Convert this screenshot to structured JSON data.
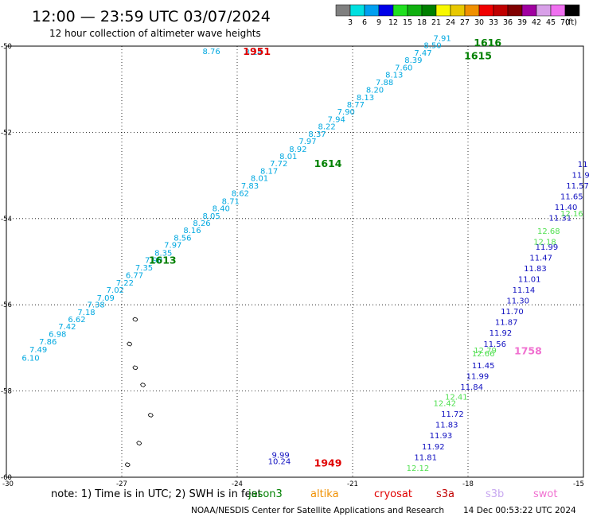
{
  "header": {
    "title": "12:00 — 23:59 UTC 03/07/2024",
    "subtitle": "12 hour collection of altimeter wave heights"
  },
  "colorbar": {
    "unit": "(ft)",
    "bins": [
      {
        "label": "3",
        "color": "#808080"
      },
      {
        "label": "6",
        "color": "#00e0e0"
      },
      {
        "label": "9",
        "color": "#00a0f0"
      },
      {
        "label": "12",
        "color": "#0000e8"
      },
      {
        "label": "15",
        "color": "#20e020"
      },
      {
        "label": "18",
        "color": "#10b010"
      },
      {
        "label": "21",
        "color": "#008000"
      },
      {
        "label": "24",
        "color": "#f8f800"
      },
      {
        "label": "27",
        "color": "#e8c800"
      },
      {
        "label": "30",
        "color": "#f09000"
      },
      {
        "label": "33",
        "color": "#f00000"
      },
      {
        "label": "36",
        "color": "#c00000"
      },
      {
        "label": "39",
        "color": "#800000"
      },
      {
        "label": "42",
        "color": "#a000a0"
      },
      {
        "label": "45",
        "color": "#d8a0e8"
      },
      {
        "label": "70",
        "color": "#f070f0"
      },
      {
        "label": "",
        "color": "#000000"
      }
    ]
  },
  "axes": {
    "lat_labels": [
      "-50",
      "-52",
      "-54",
      "-56",
      "-58",
      "-60"
    ],
    "lon_labels": [
      "-30",
      "-27",
      "-24",
      "-21",
      "-18",
      "-15"
    ]
  },
  "legend": {
    "note": "note: 1) Time is in UTC; 2) SWH is in feet",
    "satellites": [
      {
        "name": "jason3",
        "color": "#008000"
      },
      {
        "name": "altika",
        "color": "#f09000"
      },
      {
        "name": "cryosat",
        "color": "#e00000"
      },
      {
        "name": "s3a",
        "color": "#c00000"
      },
      {
        "name": "s3b",
        "color": "#c8a8f0"
      },
      {
        "name": "swot",
        "color": "#f070d0"
      }
    ]
  },
  "footer": {
    "credit": "NOAA/NESDIS Center for Satellite Applications and Research",
    "timestamp": "14 Dec 00:53:22 UTC 2024"
  },
  "tracks": [
    {
      "name": "cyan-pass",
      "color": "#00a8e0",
      "labels": [
        {
          "t": "8.14",
          "lon": -23.8,
          "lat": -50.2
        },
        {
          "t": "8.76",
          "lon": -24.9,
          "lat": -50.18
        },
        {
          "t": "6.10",
          "lon": -29.6,
          "lat": -57.3
        },
        {
          "t": "7.49",
          "lon": -29.4,
          "lat": -57.1
        },
        {
          "t": "7.86",
          "lon": -29.15,
          "lat": -56.92
        },
        {
          "t": "6.98",
          "lon": -28.9,
          "lat": -56.74
        },
        {
          "t": "7.42",
          "lon": -28.65,
          "lat": -56.57
        },
        {
          "t": "6.62",
          "lon": -28.4,
          "lat": -56.4
        },
        {
          "t": "7.18",
          "lon": -28.15,
          "lat": -56.24
        },
        {
          "t": "7.38",
          "lon": -27.9,
          "lat": -56.06
        },
        {
          "t": "7.09",
          "lon": -27.65,
          "lat": -55.9
        },
        {
          "t": "7.02",
          "lon": -27.4,
          "lat": -55.72
        },
        {
          "t": "7.22",
          "lon": -27.15,
          "lat": -55.55
        },
        {
          "t": "6.77",
          "lon": -26.9,
          "lat": -55.38
        },
        {
          "t": "7.35",
          "lon": -26.65,
          "lat": -55.2
        },
        {
          "t": "7.90",
          "lon": -26.4,
          "lat": -55.03
        },
        {
          "t": "8.35",
          "lon": -26.15,
          "lat": -54.86
        },
        {
          "t": "7.97",
          "lon": -25.9,
          "lat": -54.68
        },
        {
          "t": "8.56",
          "lon": -25.65,
          "lat": -54.51
        },
        {
          "t": "8.16",
          "lon": -25.4,
          "lat": -54.34
        },
        {
          "t": "8.26",
          "lon": -25.15,
          "lat": -54.17
        },
        {
          "t": "8.05",
          "lon": -24.9,
          "lat": -54.0
        },
        {
          "t": "8.40",
          "lon": -24.65,
          "lat": -53.83
        },
        {
          "t": "8.71",
          "lon": -24.4,
          "lat": -53.66
        },
        {
          "t": "8.62",
          "lon": -24.15,
          "lat": -53.48
        },
        {
          "t": "7.83",
          "lon": -23.9,
          "lat": -53.3
        },
        {
          "t": "8.01",
          "lon": -23.65,
          "lat": -53.13
        },
        {
          "t": "8.17",
          "lon": -23.4,
          "lat": -52.96
        },
        {
          "t": "7.72",
          "lon": -23.15,
          "lat": -52.79
        },
        {
          "t": "8.01",
          "lon": -22.9,
          "lat": -52.62
        },
        {
          "t": "8.92",
          "lon": -22.65,
          "lat": -52.45
        },
        {
          "t": "7.97",
          "lon": -22.4,
          "lat": -52.27
        },
        {
          "t": "8.37",
          "lon": -22.15,
          "lat": -52.1
        },
        {
          "t": "8.22",
          "lon": -21.9,
          "lat": -51.93
        },
        {
          "t": "7.94",
          "lon": -21.65,
          "lat": -51.76
        },
        {
          "t": "7.90",
          "lon": -21.4,
          "lat": -51.59
        },
        {
          "t": "8.77",
          "lon": -21.15,
          "lat": -51.42
        },
        {
          "t": "8.13",
          "lon": -20.9,
          "lat": -51.25
        },
        {
          "t": "8.20",
          "lon": -20.65,
          "lat": -51.08
        },
        {
          "t": "7.88",
          "lon": -20.4,
          "lat": -50.9
        },
        {
          "t": "8.13",
          "lon": -20.15,
          "lat": -50.73
        },
        {
          "t": "7.60",
          "lon": -19.9,
          "lat": -50.56
        },
        {
          "t": "8.39",
          "lon": -19.65,
          "lat": -50.39
        },
        {
          "t": "7.47",
          "lon": -19.4,
          "lat": -50.22
        },
        {
          "t": "8.50",
          "lon": -19.15,
          "lat": -50.05
        },
        {
          "t": "7.91",
          "lon": -18.9,
          "lat": -49.88
        }
      ]
    },
    {
      "name": "blue-pass",
      "color": "#1010c0",
      "labels": [
        {
          "t": "11.81",
          "lon": -19.4,
          "lat": -59.6
        },
        {
          "t": "11.92",
          "lon": -19.2,
          "lat": -59.35
        },
        {
          "t": "11.93",
          "lon": -19.0,
          "lat": -59.1
        },
        {
          "t": "11.83",
          "lon": -18.85,
          "lat": -58.85
        },
        {
          "t": "11.72",
          "lon": -18.7,
          "lat": -58.6
        },
        {
          "t": "11.84",
          "lon": -18.2,
          "lat": -57.97
        },
        {
          "t": "11.99",
          "lon": -18.05,
          "lat": -57.72
        },
        {
          "t": "11.45",
          "lon": -17.9,
          "lat": -57.47
        },
        {
          "t": "11.56",
          "lon": -17.6,
          "lat": -56.97
        },
        {
          "t": "11.92",
          "lon": -17.45,
          "lat": -56.72
        },
        {
          "t": "11.87",
          "lon": -17.3,
          "lat": -56.47
        },
        {
          "t": "11.70",
          "lon": -17.15,
          "lat": -56.22
        },
        {
          "t": "11.30",
          "lon": -17.0,
          "lat": -55.97
        },
        {
          "t": "11.14",
          "lon": -16.85,
          "lat": -55.72
        },
        {
          "t": "11.01",
          "lon": -16.7,
          "lat": -55.47
        },
        {
          "t": "11.83",
          "lon": -16.55,
          "lat": -55.22
        },
        {
          "t": "11.47",
          "lon": -16.4,
          "lat": -54.97
        },
        {
          "t": "11.99",
          "lon": -16.25,
          "lat": -54.72
        },
        {
          "t": "11.31",
          "lon": -15.9,
          "lat": -54.05
        },
        {
          "t": "11.40",
          "lon": -15.75,
          "lat": -53.8
        },
        {
          "t": "11.65",
          "lon": -15.6,
          "lat": -53.55
        },
        {
          "t": "11.57",
          "lon": -15.45,
          "lat": -53.3
        },
        {
          "t": "11.9",
          "lon": -15.3,
          "lat": -53.05
        },
        {
          "t": "11",
          "lon": -15.15,
          "lat": -52.8
        }
      ]
    },
    {
      "name": "green-pass",
      "color": "#50e050",
      "labels": [
        {
          "t": "12.12",
          "lon": -19.6,
          "lat": -59.85
        },
        {
          "t": "12.42",
          "lon": -18.9,
          "lat": -58.35
        },
        {
          "t": "12.41",
          "lon": -18.6,
          "lat": -58.2
        },
        {
          "t": "12.66",
          "lon": -17.9,
          "lat": -57.2
        },
        {
          "t": "12.79",
          "lon": -17.85,
          "lat": -57.12
        },
        {
          "t": "12.18",
          "lon": -16.3,
          "lat": -54.6
        },
        {
          "t": "12.68",
          "lon": -16.2,
          "lat": -54.35
        },
        {
          "t": "12.16",
          "lon": -15.6,
          "lat": -53.95
        }
      ]
    },
    {
      "name": "blue-south",
      "color": "#1010c0",
      "labels": [
        {
          "t": "9.99",
          "lon": -23.1,
          "lat": -59.55
        },
        {
          "t": "10.24",
          "lon": -23.2,
          "lat": -59.7
        }
      ]
    }
  ],
  "pass_times": [
    {
      "t": "1616",
      "lon": -17.85,
      "lat": -50.0,
      "color": "#008000"
    },
    {
      "t": "1615",
      "lon": -18.1,
      "lat": -50.3,
      "color": "#008000"
    },
    {
      "t": "1614",
      "lon": -22.0,
      "lat": -52.8,
      "color": "#008000"
    },
    {
      "t": "1613",
      "lon": -26.3,
      "lat": -55.05,
      "color": "#008000"
    },
    {
      "t": "1951",
      "lon": -23.85,
      "lat": -50.2,
      "color": "#e00000"
    },
    {
      "t": "1949",
      "lon": -22.0,
      "lat": -59.75,
      "color": "#e00000"
    },
    {
      "t": "1758",
      "lon": -16.8,
      "lat": -57.15,
      "color": "#f070d0"
    }
  ],
  "islands": [
    {
      "lon": -26.65,
      "lat": -56.33
    },
    {
      "lon": -26.8,
      "lat": -56.9
    },
    {
      "lon": -26.65,
      "lat": -57.45
    },
    {
      "lon": -26.45,
      "lat": -57.85
    },
    {
      "lon": -26.25,
      "lat": -58.55
    },
    {
      "lon": -26.55,
      "lat": -59.2
    },
    {
      "lon": -26.85,
      "lat": -59.7
    }
  ]
}
